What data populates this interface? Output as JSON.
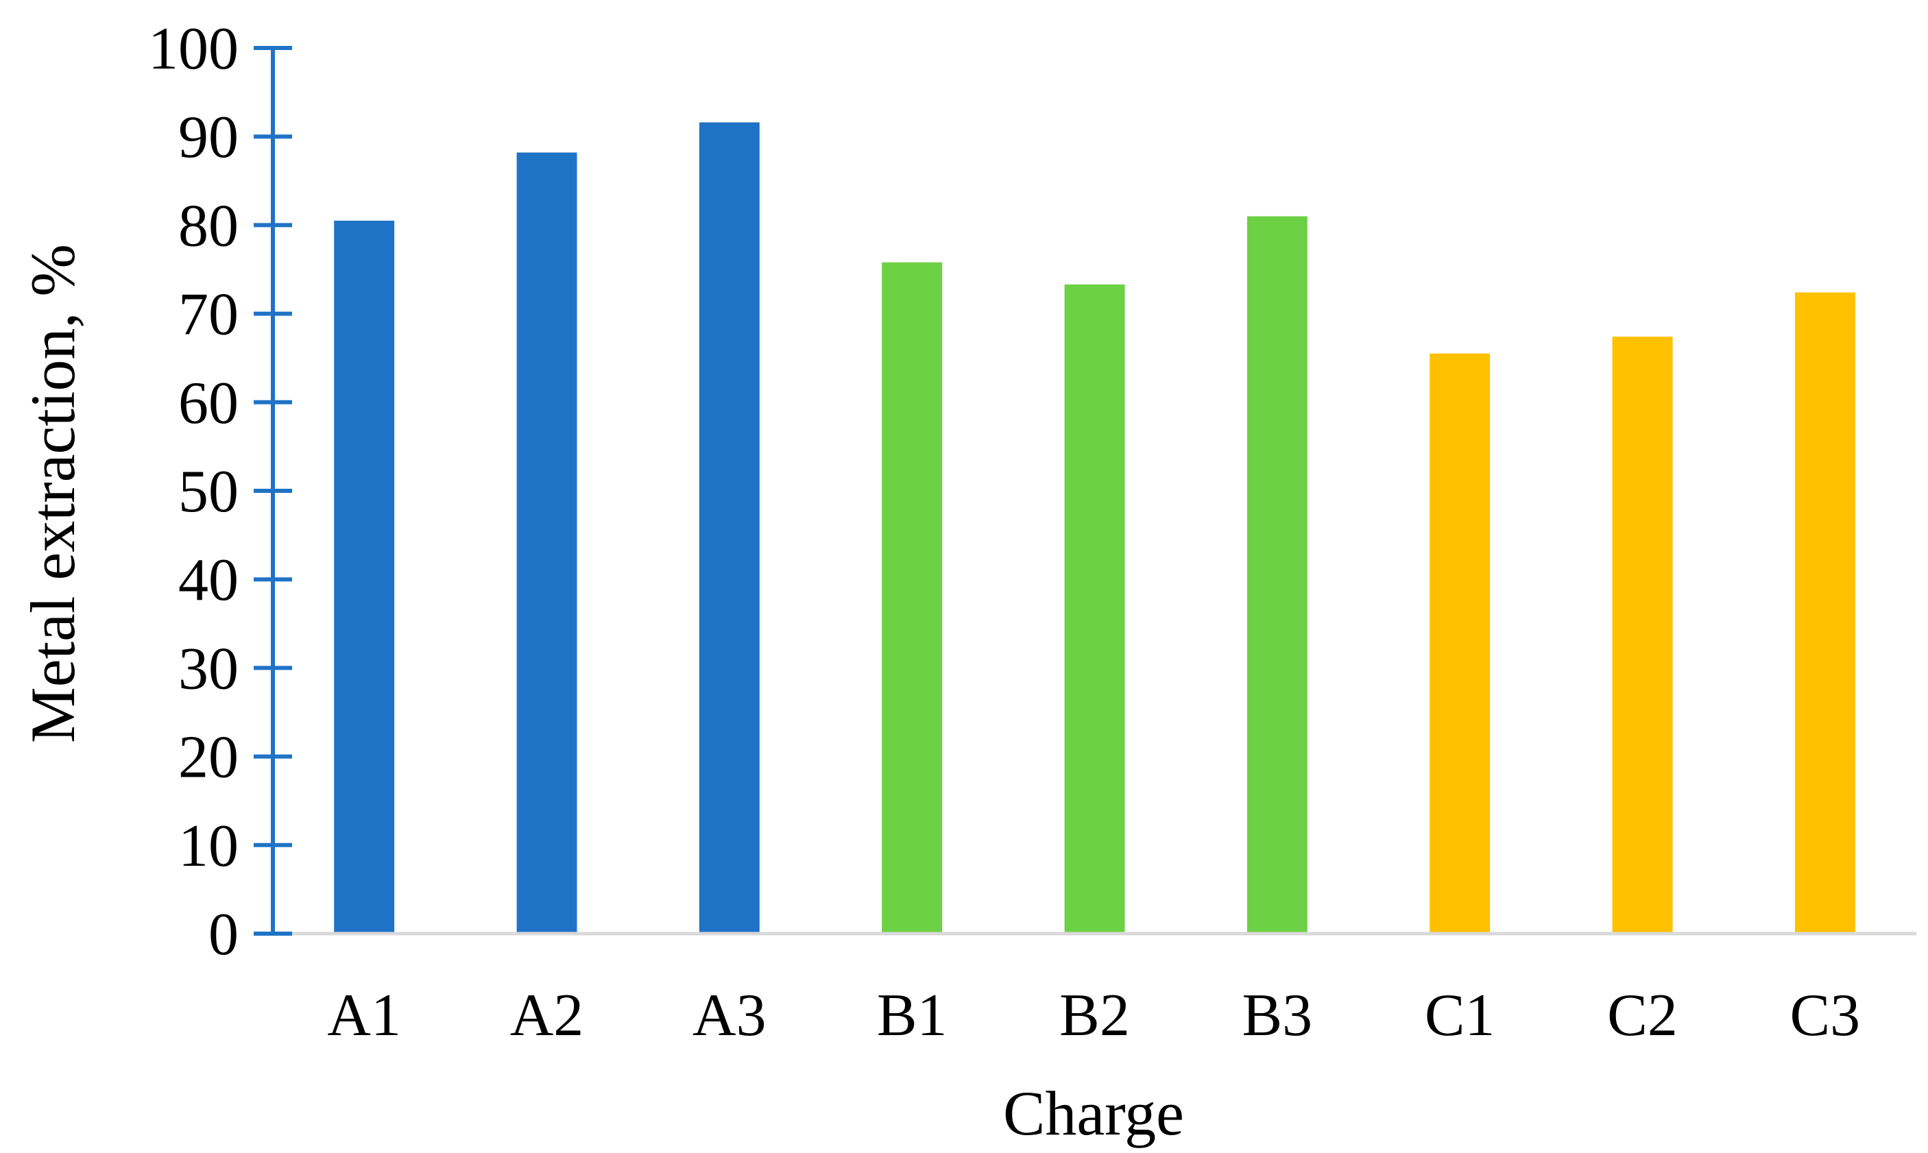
{
  "chart_data": {
    "type": "bar",
    "title": "",
    "xlabel": "Charge",
    "ylabel": "Metal extraction, %",
    "categories": [
      "A1",
      "A2",
      "A3",
      "B1",
      "B2",
      "B3",
      "C1",
      "C2",
      "C3"
    ],
    "values": [
      80.5,
      88.2,
      91.6,
      75.8,
      73.3,
      81.0,
      65.5,
      67.4,
      72.4
    ],
    "bar_colors": [
      "#1f73c6",
      "#1f73c6",
      "#1f73c6",
      "#6dd145",
      "#6dd145",
      "#6dd145",
      "#ffc000",
      "#ffc000",
      "#ffc000"
    ],
    "ylim": [
      0,
      100
    ],
    "yticks": [
      0,
      10,
      20,
      30,
      40,
      50,
      60,
      70,
      80,
      90,
      100
    ],
    "axis_color": "#1f73c6",
    "baseline_color": "#d9d9d9",
    "grid": false,
    "legend": "none"
  }
}
